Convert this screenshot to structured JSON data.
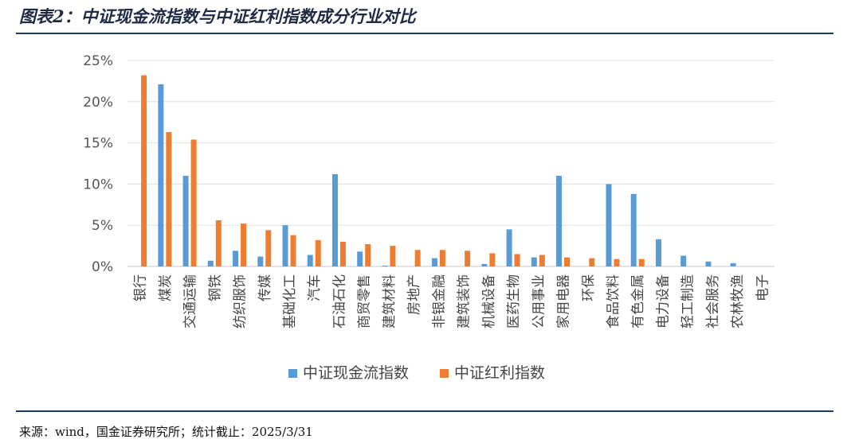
{
  "header": {
    "title": "图表2：中证现金流指数与中证红利指数成分行业对比"
  },
  "footer": {
    "source": "来源：wind，国金证券研究所；统计截止：2025/3/31"
  },
  "chart_data": {
    "type": "bar",
    "categories": [
      "银行",
      "煤炭",
      "交通运输",
      "钢铁",
      "纺织服饰",
      "传媒",
      "基础化工",
      "汽车",
      "石油石化",
      "商贸零售",
      "建筑材料",
      "房地产",
      "非银金融",
      "建筑装饰",
      "机械设备",
      "医药生物",
      "公用事业",
      "家用电器",
      "环保",
      "食品饮料",
      "有色金属",
      "电力设备",
      "轻工制造",
      "社会服务",
      "农林牧渔",
      "电子"
    ],
    "series": [
      {
        "name": "中证现金流指数",
        "color": "#5b9bd5",
        "values": [
          0,
          22.1,
          11.0,
          0.7,
          1.9,
          1.2,
          5.0,
          1.4,
          11.2,
          1.8,
          0.1,
          0,
          1.0,
          0,
          0.3,
          4.5,
          1.1,
          11.0,
          0,
          10.0,
          8.8,
          3.3,
          1.3,
          0.6,
          0.4,
          0
        ]
      },
      {
        "name": "中证红利指数",
        "color": "#ed7d31",
        "values": [
          23.2,
          16.3,
          15.4,
          5.6,
          5.2,
          4.4,
          3.8,
          3.2,
          3.0,
          2.7,
          2.5,
          2.0,
          2.0,
          1.9,
          1.6,
          1.5,
          1.4,
          1.1,
          1.0,
          0.9,
          0.9,
          0,
          0,
          0,
          0,
          0
        ]
      }
    ],
    "yticks": [
      "0%",
      "5%",
      "10%",
      "15%",
      "20%",
      "25%"
    ],
    "ylim": [
      0,
      25
    ],
    "grid": true,
    "legend_position": "bottom"
  }
}
